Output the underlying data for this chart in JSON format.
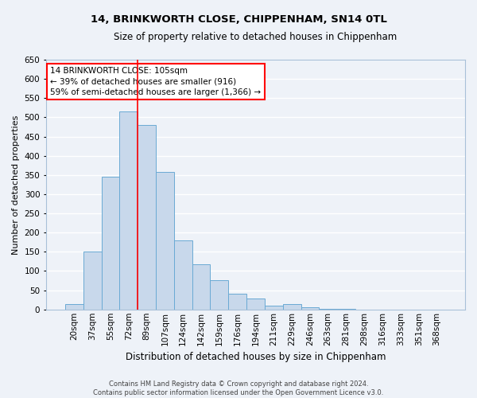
{
  "title": "14, BRINKWORTH CLOSE, CHIPPENHAM, SN14 0TL",
  "subtitle": "Size of property relative to detached houses in Chippenham",
  "xlabel": "Distribution of detached houses by size in Chippenham",
  "ylabel": "Number of detached properties",
  "categories": [
    "20sqm",
    "37sqm",
    "55sqm",
    "72sqm",
    "89sqm",
    "107sqm",
    "124sqm",
    "142sqm",
    "159sqm",
    "176sqm",
    "194sqm",
    "211sqm",
    "229sqm",
    "246sqm",
    "263sqm",
    "281sqm",
    "298sqm",
    "316sqm",
    "333sqm",
    "351sqm",
    "368sqm"
  ],
  "values": [
    15,
    150,
    345,
    515,
    480,
    358,
    180,
    118,
    77,
    40,
    28,
    10,
    14,
    5,
    2,
    1,
    0,
    0,
    0,
    0,
    0
  ],
  "bar_color": "#c8d8eb",
  "bar_edge_color": "#6aaad4",
  "ylim": [
    0,
    650
  ],
  "yticks": [
    0,
    50,
    100,
    150,
    200,
    250,
    300,
    350,
    400,
    450,
    500,
    550,
    600,
    650
  ],
  "annotation_box_text": "14 BRINKWORTH CLOSE: 105sqm\n← 39% of detached houses are smaller (916)\n59% of semi-detached houses are larger (1,366) →",
  "red_line_x": 3.5,
  "background_color": "#eef2f8",
  "grid_color": "#ffffff",
  "footer_line1": "Contains HM Land Registry data © Crown copyright and database right 2024.",
  "footer_line2": "Contains public sector information licensed under the Open Government Licence v3.0.",
  "title_fontsize": 9.5,
  "subtitle_fontsize": 8.5,
  "ylabel_fontsize": 8,
  "xlabel_fontsize": 8.5,
  "tick_fontsize": 7.5,
  "ytick_fontsize": 7.5,
  "annot_fontsize": 7.5,
  "footer_fontsize": 6
}
